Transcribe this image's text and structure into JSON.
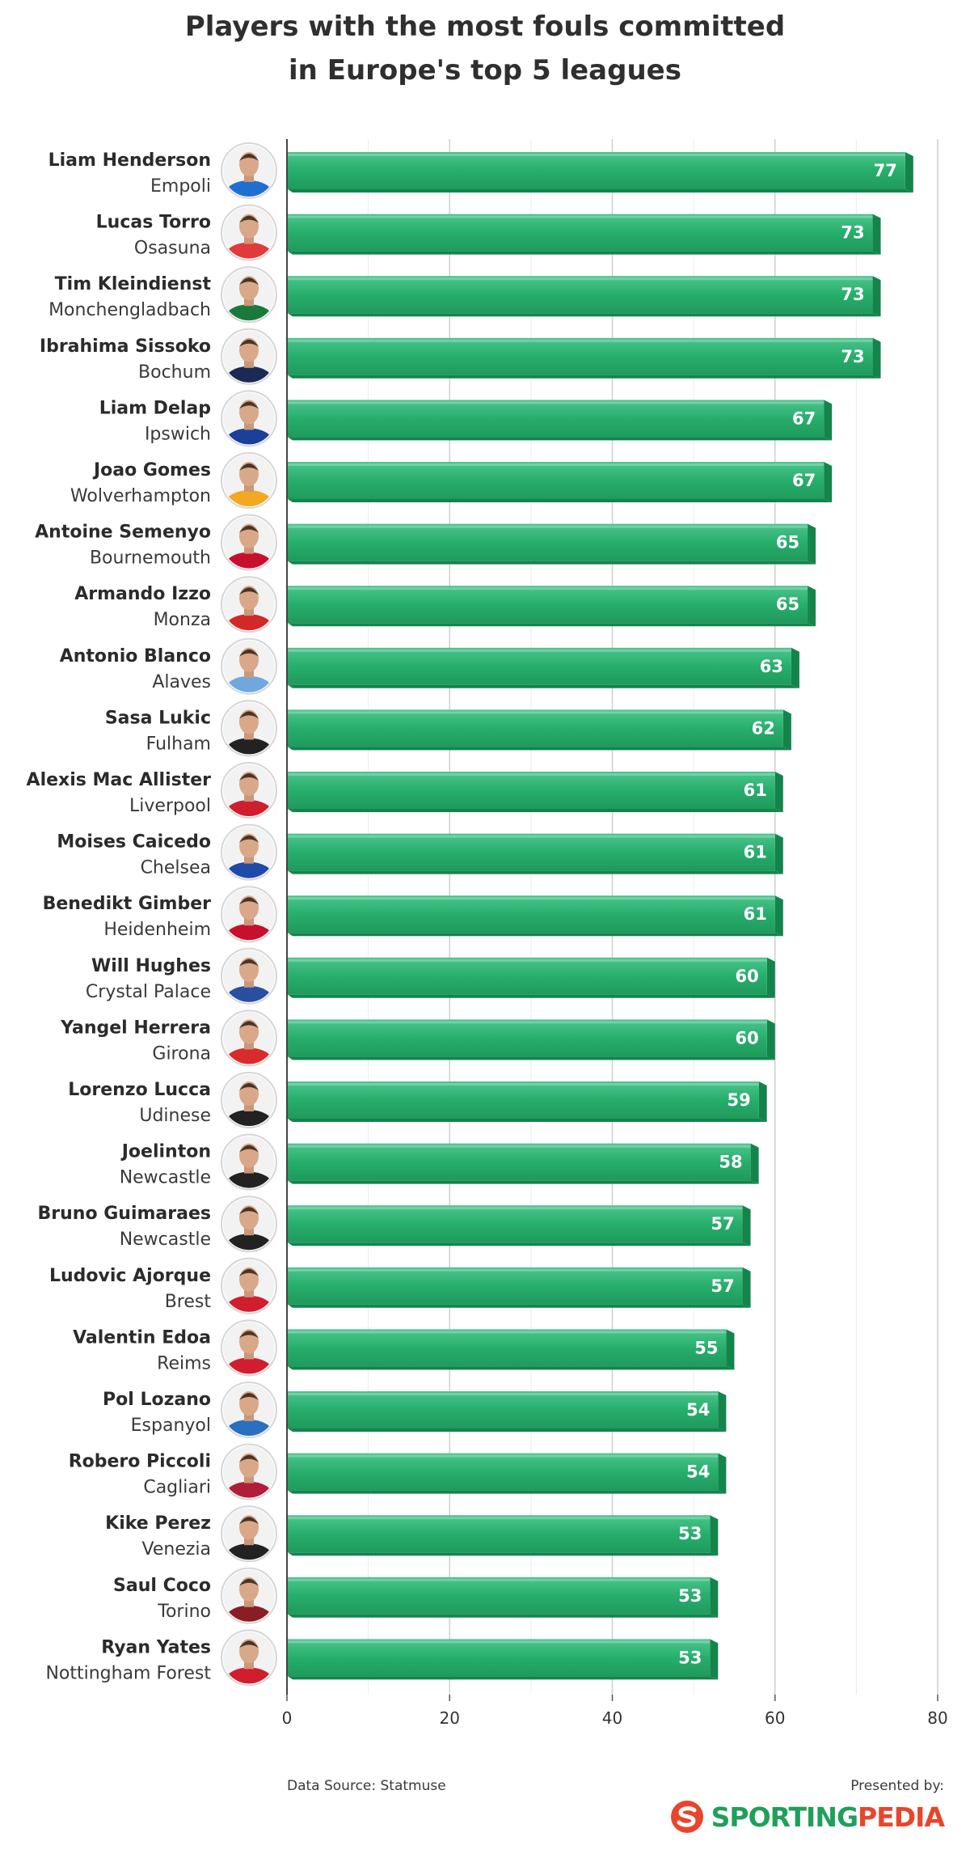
{
  "title_line1": "Players with the most fouls committed",
  "title_line2": "in Europe's top 5 leagues",
  "footer": {
    "source": "Data Source: Statmuse",
    "presented": "Presented by:",
    "brand_part1": "SPORTING",
    "brand_part2": "PEDIA"
  },
  "colors": {
    "bar_top": "#4cc58d",
    "bar_mid": "#27ae6c",
    "bar_bottom": "#1f9a5d",
    "bar_side": "#14844b",
    "value_text": "#ffffff",
    "brand_green": "#1fa05a",
    "brand_red": "#e8452c"
  },
  "chart_data": {
    "type": "bar",
    "orientation": "horizontal",
    "title": "Players with the most fouls committed in Europe's top 5 leagues",
    "xlim": [
      0,
      80
    ],
    "xticks": [
      0,
      20,
      40,
      60,
      80
    ],
    "grid": true,
    "categories": [
      {
        "player": "Liam Henderson",
        "team": "Empoli"
      },
      {
        "player": "Lucas Torro",
        "team": "Osasuna"
      },
      {
        "player": "Tim Kleindienst",
        "team": "Monchengladbach"
      },
      {
        "player": "Ibrahima Sissoko",
        "team": "Bochum"
      },
      {
        "player": "Liam Delap",
        "team": "Ipswich"
      },
      {
        "player": "Joao Gomes",
        "team": "Wolverhampton"
      },
      {
        "player": "Antoine Semenyo",
        "team": "Bournemouth"
      },
      {
        "player": "Armando Izzo",
        "team": "Monza"
      },
      {
        "player": "Antonio Blanco",
        "team": "Alaves"
      },
      {
        "player": "Sasa Lukic",
        "team": "Fulham"
      },
      {
        "player": "Alexis Mac Allister",
        "team": "Liverpool"
      },
      {
        "player": "Moises Caicedo",
        "team": "Chelsea"
      },
      {
        "player": "Benedikt Gimber",
        "team": "Heidenheim"
      },
      {
        "player": "Will Hughes",
        "team": "Crystal Palace"
      },
      {
        "player": "Yangel Herrera",
        "team": "Girona"
      },
      {
        "player": "Lorenzo Lucca",
        "team": "Udinese"
      },
      {
        "player": "Joelinton",
        "team": "Newcastle"
      },
      {
        "player": "Bruno Guimaraes",
        "team": "Newcastle"
      },
      {
        "player": "Ludovic Ajorque",
        "team": "Brest"
      },
      {
        "player": "Valentin Edoa",
        "team": "Reims"
      },
      {
        "player": "Pol Lozano",
        "team": "Espanyol"
      },
      {
        "player": "Robero Piccoli",
        "team": "Cagliari"
      },
      {
        "player": "Kike Perez",
        "team": "Venezia"
      },
      {
        "player": "Saul Coco",
        "team": "Torino"
      },
      {
        "player": "Ryan Yates",
        "team": "Nottingham Forest"
      }
    ],
    "values": [
      77,
      73,
      73,
      73,
      67,
      67,
      65,
      65,
      63,
      62,
      61,
      61,
      61,
      60,
      60,
      59,
      58,
      57,
      57,
      55,
      54,
      54,
      53,
      53,
      53
    ],
    "avatar_kit_colors": [
      "#1f6fd1",
      "#e03a3a",
      "#1a7a3c",
      "#1b2a55",
      "#1c3f99",
      "#f2a922",
      "#c8102e",
      "#d12828",
      "#6fa8dc",
      "#222222",
      "#d01e2e",
      "#1f4aa8",
      "#c8102e",
      "#2a4fa0",
      "#d92b2b",
      "#222222",
      "#222222",
      "#222222",
      "#d01e2e",
      "#d01e2e",
      "#2a6fc0",
      "#b01e3a",
      "#222222",
      "#8a1e24",
      "#d01e2e"
    ]
  }
}
